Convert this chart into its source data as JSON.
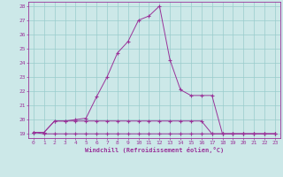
{
  "xlabel": "Windchill (Refroidissement éolien,°C)",
  "bg_color": "#cce8e8",
  "grid_color": "#99cccc",
  "line_color": "#993399",
  "xlim_min": -0.5,
  "xlim_max": 23.5,
  "ylim_min": 18.7,
  "ylim_max": 28.3,
  "yticks": [
    19,
    20,
    21,
    22,
    23,
    24,
    25,
    26,
    27,
    28
  ],
  "xticks": [
    0,
    1,
    2,
    3,
    4,
    5,
    6,
    7,
    8,
    9,
    10,
    11,
    12,
    13,
    14,
    15,
    16,
    17,
    18,
    19,
    20,
    21,
    22,
    23
  ],
  "series1_x": [
    0,
    1,
    2,
    3,
    4,
    5,
    6,
    7,
    8,
    9,
    10,
    11,
    12,
    13,
    14,
    15,
    16,
    17,
    18,
    19,
    20,
    21,
    22,
    23
  ],
  "series1_y": [
    19.1,
    19.1,
    19.9,
    19.9,
    20.0,
    20.1,
    21.6,
    23.0,
    24.7,
    25.5,
    27.0,
    27.3,
    28.0,
    24.2,
    22.1,
    21.7,
    21.7,
    21.7,
    19.0,
    19.0,
    19.0,
    19.0,
    19.0,
    19.0
  ],
  "series2_x": [
    0,
    1,
    2,
    3,
    4,
    5,
    6,
    7,
    8,
    9,
    10,
    11,
    12,
    13,
    14,
    15,
    16,
    17,
    18,
    19,
    20,
    21,
    22,
    23
  ],
  "series2_y": [
    19.1,
    19.0,
    19.0,
    19.0,
    19.0,
    19.0,
    19.0,
    19.0,
    19.0,
    19.0,
    19.0,
    19.0,
    19.0,
    19.0,
    19.0,
    19.0,
    19.0,
    19.0,
    19.0,
    19.0,
    19.0,
    19.0,
    19.0,
    19.0
  ],
  "series3_x": [
    0,
    1,
    2,
    3,
    4,
    5,
    6,
    7,
    8,
    9,
    10,
    11,
    12,
    13,
    14,
    15,
    16,
    17,
    18,
    19,
    20,
    21,
    22,
    23
  ],
  "series3_y": [
    19.1,
    19.1,
    19.9,
    19.9,
    19.9,
    19.9,
    19.9,
    19.9,
    19.9,
    19.9,
    19.9,
    19.9,
    19.9,
    19.9,
    19.9,
    19.9,
    19.9,
    19.0,
    19.0,
    19.0,
    19.0,
    19.0,
    19.0,
    19.0
  ]
}
